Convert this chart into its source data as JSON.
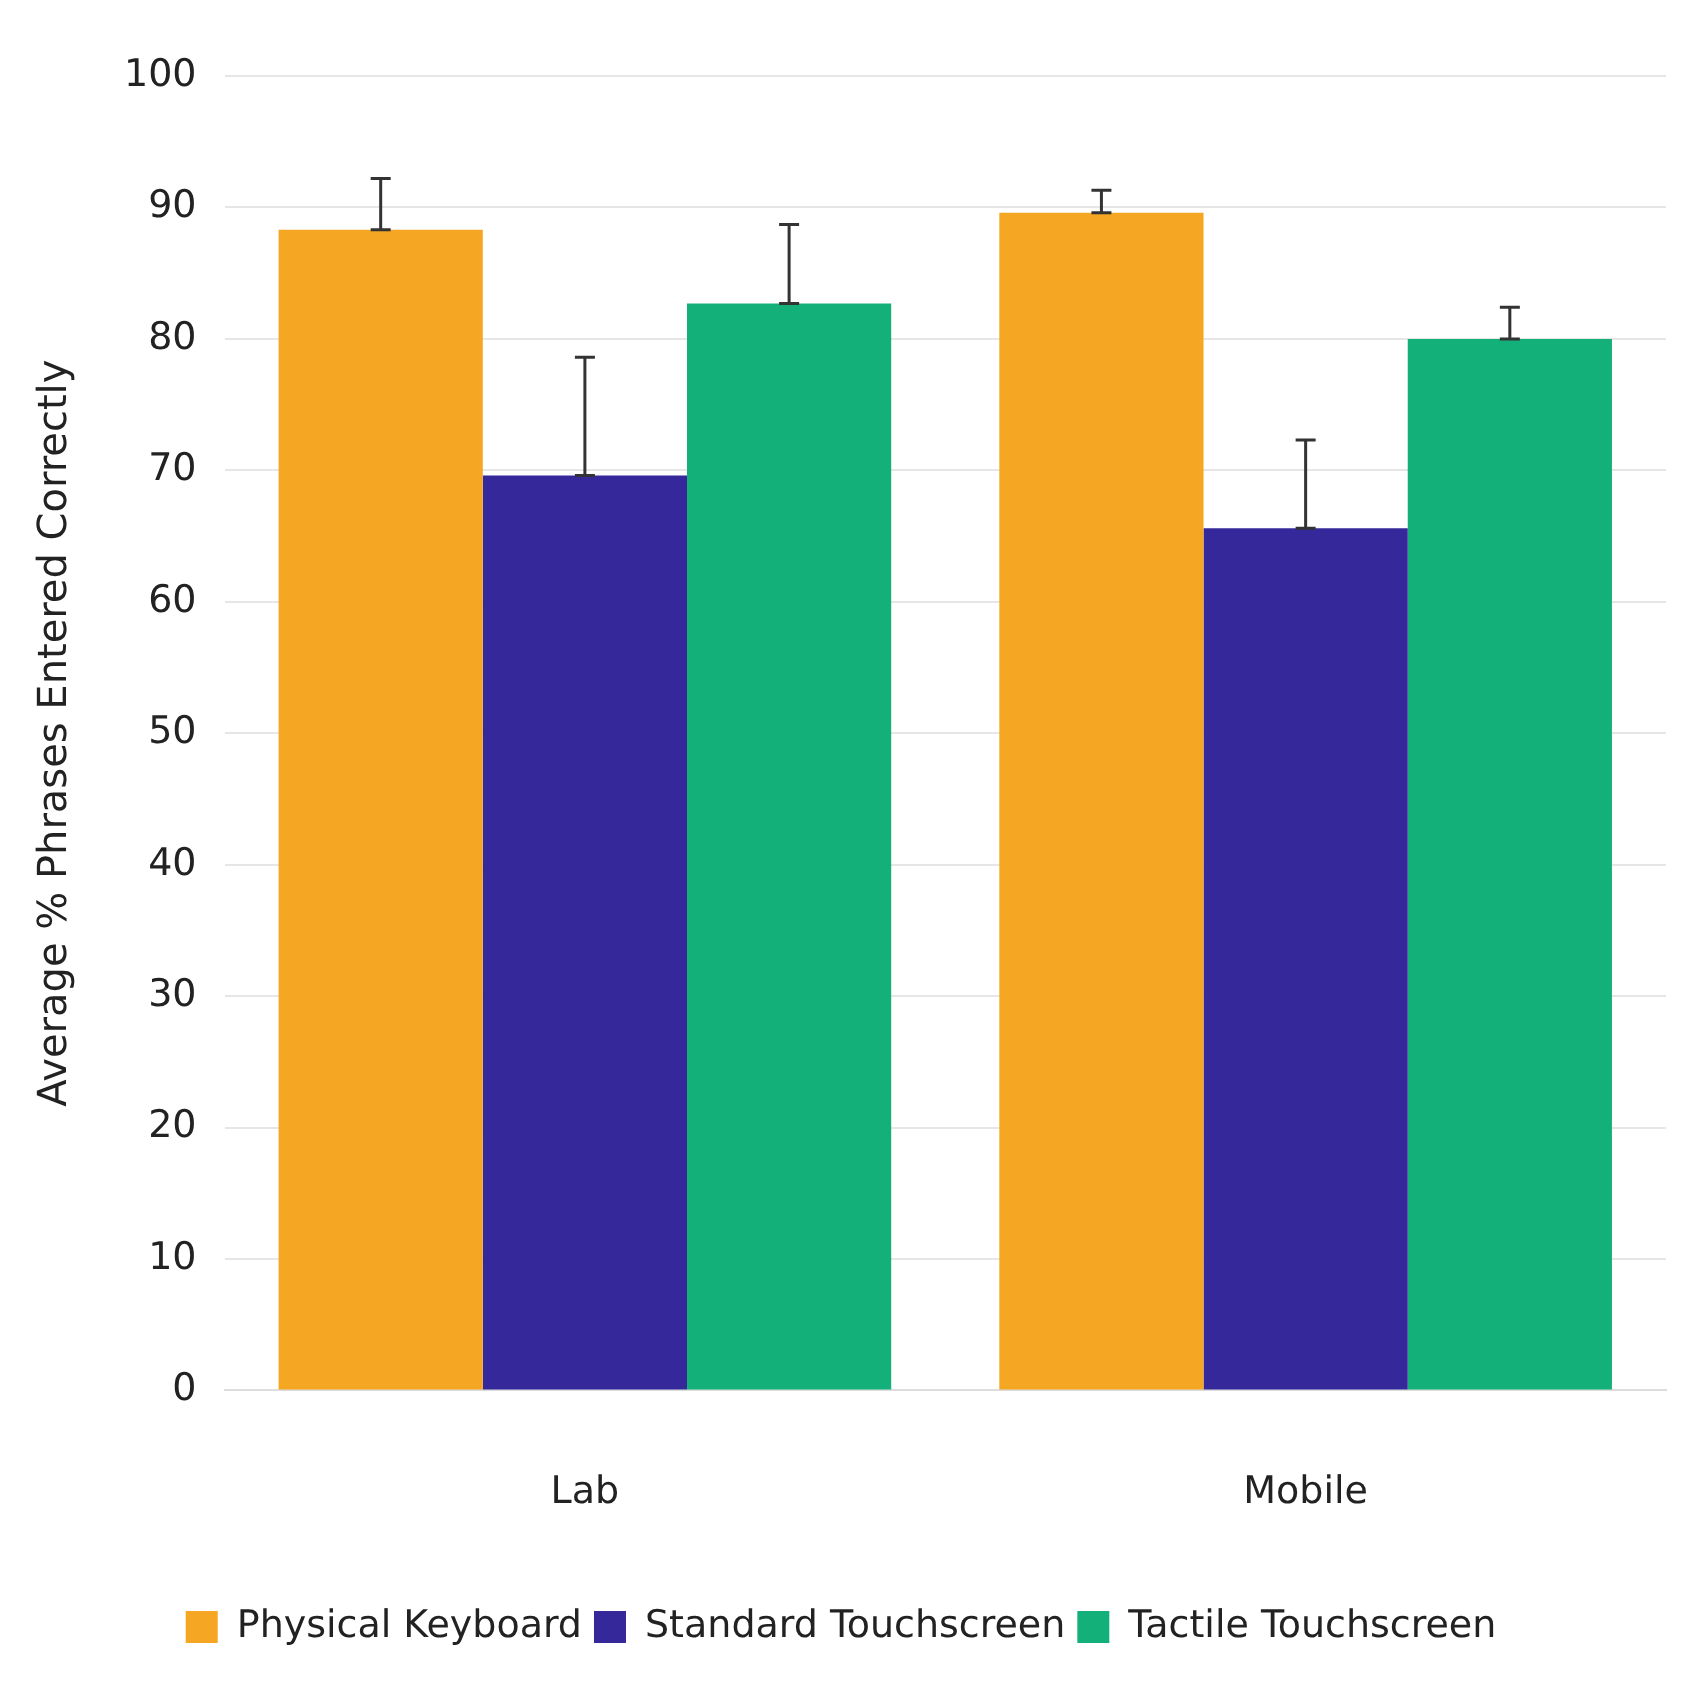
{
  "chart_data": {
    "type": "bar",
    "ylabel": "Average % Phrases Entered Correctly",
    "categories": [
      "Lab",
      "Mobile"
    ],
    "series": [
      {
        "name": "Physical Keyboard",
        "color": "#f5a623",
        "values": [
          88.3,
          89.6
        ],
        "errors": [
          [
            88.3,
            92.2
          ],
          [
            89.6,
            91.3
          ]
        ]
      },
      {
        "name": "Standard Touchscreen",
        "color": "#35289a",
        "values": [
          69.6,
          65.6
        ],
        "errors": [
          [
            69.6,
            78.6
          ],
          [
            65.6,
            72.3
          ]
        ]
      },
      {
        "name": "Tactile Touchscreen",
        "color": "#14b07a",
        "values": [
          82.7,
          80.0
        ],
        "errors": [
          [
            82.7,
            88.7
          ],
          [
            80.0,
            82.4
          ]
        ]
      }
    ],
    "ylim": [
      0,
      100
    ],
    "yticks": [
      0,
      10,
      20,
      30,
      40,
      50,
      60,
      70,
      80,
      90,
      100
    ],
    "grid": "y",
    "legend": "bottom"
  }
}
